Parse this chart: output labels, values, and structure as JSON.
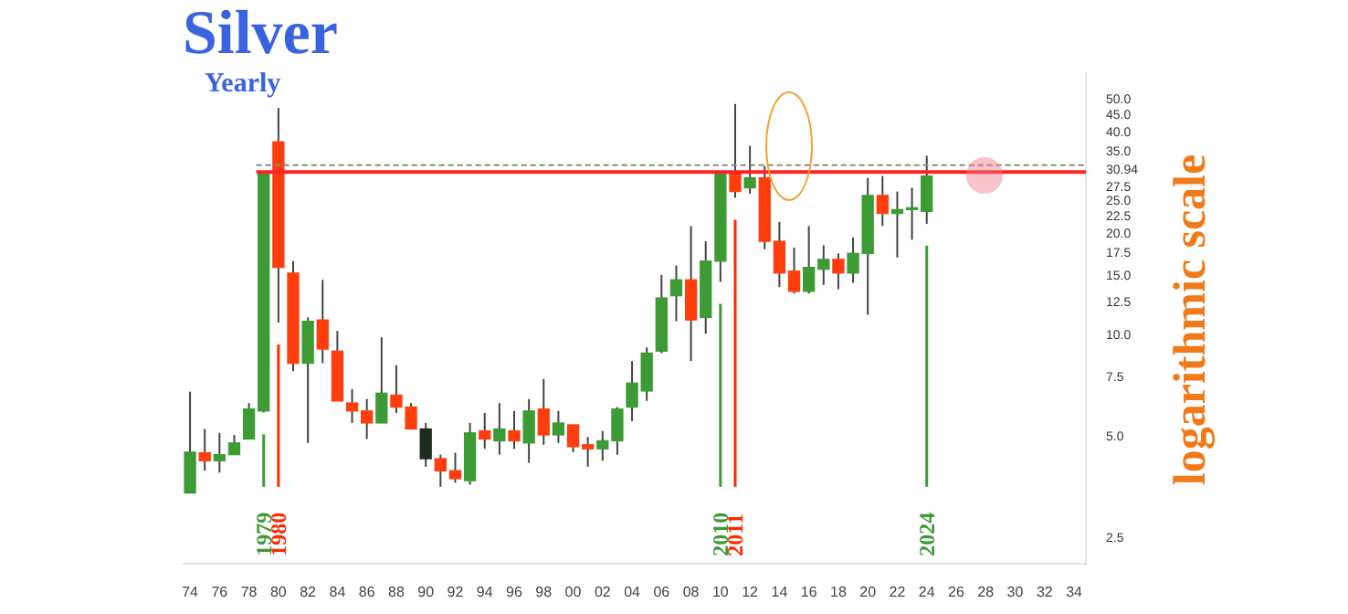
{
  "chart_data": {
    "type": "candlestick",
    "title": "Silver",
    "subtitle": "Yearly",
    "annotations": [
      "logarithmic scale"
    ],
    "x": [
      1974,
      1975,
      1976,
      1977,
      1978,
      1979,
      1980,
      1981,
      1982,
      1983,
      1984,
      1985,
      1986,
      1987,
      1988,
      1989,
      1990,
      1991,
      1992,
      1993,
      1994,
      1995,
      1996,
      1997,
      1998,
      1999,
      2000,
      2001,
      2002,
      2003,
      2004,
      2005,
      2006,
      2007,
      2008,
      2009,
      2010,
      2011,
      2012,
      2013,
      2014,
      2015,
      2016,
      2017,
      2018,
      2019,
      2020,
      2021,
      2022,
      2023,
      2024
    ],
    "ohlc": [
      [
        3.4,
        6.8,
        3.4,
        4.5
      ],
      [
        4.48,
        5.27,
        3.96,
        4.24
      ],
      [
        4.24,
        5.13,
        3.91,
        4.42
      ],
      [
        4.42,
        5.06,
        4.42,
        4.79
      ],
      [
        4.92,
        6.29,
        4.92,
        6.04
      ],
      [
        5.96,
        30.5,
        5.9,
        30.5
      ],
      [
        37.5,
        47.3,
        10.9,
        15.9
      ],
      [
        15.3,
        16.6,
        7.82,
        8.26
      ],
      [
        8.26,
        11.3,
        4.79,
        11.0
      ],
      [
        11.1,
        14.6,
        8.26,
        9.1
      ],
      [
        8.97,
        10.3,
        6.38,
        6.38
      ],
      [
        6.29,
        6.92,
        5.49,
        5.96
      ],
      [
        5.96,
        6.47,
        4.92,
        5.49
      ],
      [
        5.49,
        9.86,
        5.49,
        6.73
      ],
      [
        6.64,
        8.15,
        5.88,
        6.12
      ],
      [
        6.12,
        6.29,
        5.27,
        5.27
      ],
      [
        5.27,
        5.49,
        4.07,
        4.3
      ],
      [
        4.3,
        4.42,
        3.55,
        3.96
      ],
      [
        3.96,
        4.48,
        3.65,
        3.75
      ],
      [
        3.7,
        5.49,
        3.6,
        5.13
      ],
      [
        5.2,
        5.88,
        4.6,
        4.92
      ],
      [
        4.86,
        6.29,
        4.42,
        5.27
      ],
      [
        5.2,
        5.96,
        4.6,
        4.86
      ],
      [
        4.79,
        6.47,
        4.18,
        5.96
      ],
      [
        6.04,
        7.41,
        4.73,
        5.06
      ],
      [
        5.06,
        5.96,
        4.79,
        5.49
      ],
      [
        5.42,
        5.42,
        4.5,
        4.67
      ],
      [
        4.73,
        4.99,
        4.07,
        4.6
      ],
      [
        4.6,
        5.2,
        4.24,
        4.86
      ],
      [
        4.86,
        6.12,
        4.42,
        6.04
      ],
      [
        6.12,
        8.38,
        5.56,
        7.21
      ],
      [
        6.83,
        9.2,
        6.38,
        8.85
      ],
      [
        8.97,
        15.1,
        8.85,
        12.9
      ],
      [
        13.1,
        16.1,
        11.0,
        14.6
      ],
      [
        14.6,
        21.1,
        8.38,
        11.1
      ],
      [
        11.3,
        19.0,
        10.1,
        16.6
      ],
      [
        16.6,
        30.1,
        14.4,
        30.1
      ],
      [
        30.1,
        48.6,
        25.6,
        26.7
      ],
      [
        27.4,
        36.5,
        26.3,
        29.3
      ],
      [
        29.3,
        31.8,
        18.0,
        19.0
      ],
      [
        19.0,
        21.7,
        13.9,
        15.3
      ],
      [
        15.5,
        18.2,
        13.3,
        13.5
      ],
      [
        13.5,
        21.1,
        13.3,
        15.9
      ],
      [
        15.7,
        18.5,
        14.1,
        16.8
      ],
      [
        16.8,
        17.5,
        13.7,
        15.3
      ],
      [
        15.3,
        19.5,
        14.3,
        17.5
      ],
      [
        17.5,
        29.3,
        11.5,
        26.0
      ],
      [
        26.0,
        29.7,
        21.1,
        23.0
      ],
      [
        23.0,
        26.7,
        17.0,
        23.6
      ],
      [
        23.6,
        27.4,
        19.2,
        23.9
      ],
      [
        23.3,
        34.1,
        21.4,
        29.7
      ]
    ],
    "colors": [
      "#3d9b35",
      "#ff3d0d",
      "#3d9b35",
      "#3d9b35",
      "#3d9b35",
      "#3d9b35",
      "#ff3d0d",
      "#ff3d0d",
      "#3d9b35",
      "#ff3d0d",
      "#ff3d0d",
      "#ff3d0d",
      "#ff3d0d",
      "#3d9b35",
      "#ff3d0d",
      "#ff3d0d",
      "#1c2b1c",
      "#ff3d0d",
      "#ff3d0d",
      "#3d9b35",
      "#ff3d0d",
      "#3d9b35",
      "#ff3d0d",
      "#3d9b35",
      "#ff3d0d",
      "#3d9b35",
      "#ff3d0d",
      "#ff3d0d",
      "#3d9b35",
      "#3d9b35",
      "#3d9b35",
      "#3d9b35",
      "#3d9b35",
      "#3d9b35",
      "#ff3d0d",
      "#3d9b35",
      "#3d9b35",
      "#ff3d0d",
      "#3d9b35",
      "#ff3d0d",
      "#ff3d0d",
      "#ff3d0d",
      "#3d9b35",
      "#3d9b35",
      "#ff3d0d",
      "#3d9b35",
      "#3d9b35",
      "#ff3d0d",
      "#3d9b35",
      "#3d9b35",
      "#3d9b35"
    ],
    "xlim": [
      1973.5,
      2034.8
    ],
    "xticks": [
      {
        "value": 1974,
        "label": "74"
      },
      {
        "value": 1976,
        "label": "76"
      },
      {
        "value": 1978,
        "label": "78"
      },
      {
        "value": 1980,
        "label": "80"
      },
      {
        "value": 1982,
        "label": "82"
      },
      {
        "value": 1984,
        "label": "84"
      },
      {
        "value": 1986,
        "label": "86"
      },
      {
        "value": 1988,
        "label": "88"
      },
      {
        "value": 1990,
        "label": "90"
      },
      {
        "value": 1992,
        "label": "92"
      },
      {
        "value": 1994,
        "label": "94"
      },
      {
        "value": 1996,
        "label": "96"
      },
      {
        "value": 1998,
        "label": "98"
      },
      {
        "value": 2000,
        "label": "00"
      },
      {
        "value": 2002,
        "label": "02"
      },
      {
        "value": 2004,
        "label": "04"
      },
      {
        "value": 2006,
        "label": "06"
      },
      {
        "value": 2008,
        "label": "08"
      },
      {
        "value": 2010,
        "label": "10"
      },
      {
        "value": 2012,
        "label": "12"
      },
      {
        "value": 2014,
        "label": "14"
      },
      {
        "value": 2016,
        "label": "16"
      },
      {
        "value": 2018,
        "label": "18"
      },
      {
        "value": 2020,
        "label": "20"
      },
      {
        "value": 2022,
        "label": "22"
      },
      {
        "value": 2024,
        "label": "24"
      },
      {
        "value": 2026,
        "label": "26"
      },
      {
        "value": 2028,
        "label": "28"
      },
      {
        "value": 2030,
        "label": "30"
      },
      {
        "value": 2032,
        "label": "32"
      },
      {
        "value": 2034,
        "label": "34"
      }
    ],
    "ylim": [
      2.1,
      60
    ],
    "log": true,
    "yticks": [
      {
        "value": 2.5,
        "label": "2.5"
      },
      {
        "value": 5,
        "label": "5.0"
      },
      {
        "value": 7.5,
        "label": "7.5"
      },
      {
        "value": 10,
        "label": "10.0"
      },
      {
        "value": 12.5,
        "label": "12.5"
      },
      {
        "value": 15,
        "label": "15.0"
      },
      {
        "value": 17.5,
        "label": "17.5"
      },
      {
        "value": 20,
        "label": "20.0"
      },
      {
        "value": 22.5,
        "label": "22.5"
      },
      {
        "value": 25,
        "label": "25.0"
      },
      {
        "value": 27.5,
        "label": "27.5"
      },
      {
        "value": 30.94,
        "label": "30.94"
      },
      {
        "value": 35,
        "label": "35.0"
      },
      {
        "value": 40,
        "label": "40.0"
      },
      {
        "value": 45,
        "label": "45.0"
      },
      {
        "value": 50,
        "label": "50.0"
      }
    ],
    "ref_lines": [
      {
        "axis": "y",
        "value": 30.5,
        "color": "#ff2020"
      },
      {
        "axis": "y",
        "value": 32,
        "color": "#888888",
        "line_style": "dashed"
      },
      {
        "axis": "x",
        "value": 1979,
        "label": "1979",
        "color": "#3d9b35"
      },
      {
        "axis": "x",
        "value": 1980,
        "label": "1980",
        "color": "#ff2a00"
      },
      {
        "axis": "x",
        "value": 2010,
        "label": "2010",
        "color": "#3d9b35"
      },
      {
        "axis": "x",
        "value": 2011,
        "label": "2011",
        "color": "#ff2a00"
      },
      {
        "axis": "x",
        "value": 2024,
        "label": "2024",
        "color": "#3d9b35"
      }
    ],
    "grid": false,
    "legend": false
  }
}
